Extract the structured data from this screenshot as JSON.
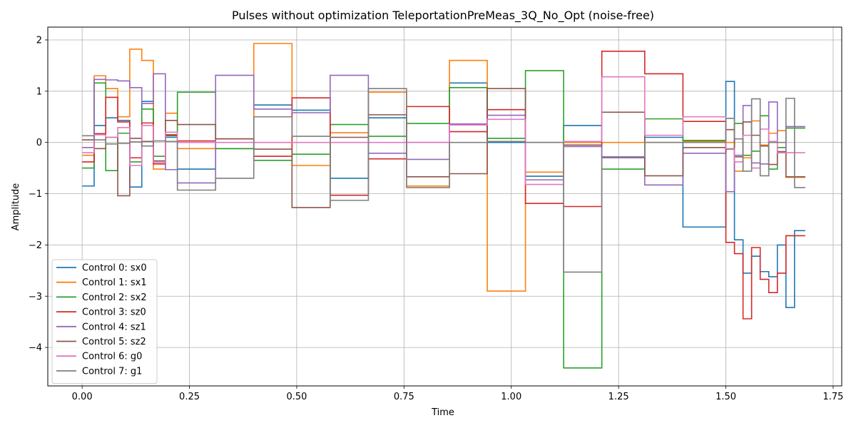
{
  "chart_data": {
    "type": "line",
    "step": "post",
    "title": "Pulses without optimization TeleportationPreMeas_3Q_No_Opt (noise-free)",
    "xlabel": "Time",
    "ylabel": "Amplitude",
    "xlim": [
      -0.08,
      1.77
    ],
    "ylim": [
      -4.75,
      2.25
    ],
    "xticks": [
      0.0,
      0.25,
      0.5,
      0.75,
      1.0,
      1.25,
      1.5,
      1.75
    ],
    "xtick_labels": [
      "0.00",
      "0.25",
      "0.50",
      "0.75",
      "1.00",
      "1.25",
      "1.50",
      "1.75"
    ],
    "yticks": [
      -4,
      -3,
      -2,
      -1,
      0,
      1,
      2
    ],
    "ytick_labels": [
      "−4",
      "−3",
      "−2",
      "−1",
      "0",
      "1",
      "2"
    ],
    "grid": true,
    "legend_position": "lower-left",
    "series": [
      {
        "name": "Control 0: sx0",
        "color": "#1f77b4",
        "x": [
          0.0,
          0.028,
          0.055,
          0.083,
          0.111,
          0.139,
          0.166,
          0.194,
          0.222,
          0.311,
          0.4,
          0.489,
          0.578,
          0.667,
          0.756,
          0.856,
          0.944,
          1.033,
          1.122,
          1.211,
          1.311,
          1.4,
          1.5,
          1.52,
          1.54,
          1.56,
          1.58,
          1.6,
          1.62,
          1.64,
          1.66,
          1.685
        ],
        "y": [
          -0.85,
          0.33,
          0.48,
          0.43,
          -0.87,
          0.8,
          -0.39,
          0.1,
          -0.52,
          -0.12,
          0.73,
          0.63,
          -0.7,
          0.48,
          0.0,
          1.16,
          0.0,
          -0.66,
          0.33,
          -0.29,
          0.1,
          -1.65,
          1.19,
          -1.9,
          -2.55,
          -2.22,
          -2.52,
          -2.62,
          -2.0,
          -3.22,
          -1.72,
          -1.72
        ]
      },
      {
        "name": "Control 1: sx1",
        "color": "#ff7f0e",
        "x": [
          0.0,
          0.028,
          0.055,
          0.083,
          0.111,
          0.139,
          0.166,
          0.194,
          0.222,
          0.311,
          0.4,
          0.489,
          0.578,
          0.667,
          0.756,
          0.856,
          0.944,
          1.033,
          1.122,
          1.211,
          1.311,
          1.4,
          1.5,
          1.52,
          1.54,
          1.56,
          1.58,
          1.6,
          1.62,
          1.64,
          1.66,
          1.685
        ],
        "y": [
          -0.25,
          1.3,
          1.05,
          0.5,
          1.82,
          1.6,
          -0.52,
          0.57,
          -0.12,
          -0.12,
          1.93,
          -0.45,
          0.19,
          0.98,
          -0.85,
          1.6,
          -2.9,
          -0.58,
          0.0,
          0.0,
          0.0,
          0.02,
          0.0,
          -0.56,
          -0.3,
          0.42,
          -0.05,
          0.18,
          0.23,
          -0.68,
          -0.68,
          -0.68
        ]
      },
      {
        "name": "Control 2: sx2",
        "color": "#2ca02c",
        "x": [
          0.0,
          0.028,
          0.055,
          0.083,
          0.111,
          0.139,
          0.166,
          0.194,
          0.222,
          0.311,
          0.4,
          0.489,
          0.578,
          0.667,
          0.756,
          0.856,
          0.944,
          1.033,
          1.122,
          1.211,
          1.311,
          1.4,
          1.5,
          1.52,
          1.54,
          1.56,
          1.58,
          1.6,
          1.62,
          1.64,
          1.66,
          1.685
        ],
        "y": [
          -0.5,
          1.16,
          -0.55,
          0.18,
          -0.38,
          0.65,
          -0.27,
          0.13,
          0.98,
          -0.12,
          -0.35,
          -0.23,
          0.35,
          0.12,
          0.37,
          1.07,
          0.08,
          1.4,
          -4.4,
          -0.52,
          0.46,
          0.04,
          -0.13,
          0.37,
          -0.25,
          -0.17,
          0.52,
          -0.52,
          -0.1,
          0.28,
          0.28,
          0.28
        ]
      },
      {
        "name": "Control 3: sz0",
        "color": "#d62728",
        "x": [
          0.0,
          0.028,
          0.055,
          0.083,
          0.111,
          0.139,
          0.166,
          0.194,
          0.222,
          0.311,
          0.4,
          0.489,
          0.578,
          0.667,
          0.756,
          0.856,
          0.944,
          1.033,
          1.122,
          1.211,
          1.311,
          1.4,
          1.5,
          1.52,
          1.54,
          1.56,
          1.58,
          1.6,
          1.62,
          1.64,
          1.66,
          1.685
        ],
        "y": [
          -0.38,
          0.17,
          0.88,
          0.4,
          -0.3,
          0.38,
          -0.42,
          0.15,
          0.03,
          0.07,
          -0.27,
          0.87,
          -1.03,
          -0.32,
          0.7,
          0.21,
          0.64,
          -1.19,
          -1.25,
          1.78,
          1.34,
          0.41,
          -1.95,
          -2.17,
          -3.44,
          -2.05,
          -2.67,
          -2.93,
          -2.55,
          -1.82,
          -1.82,
          -1.82
        ]
      },
      {
        "name": "Control 4: sz1",
        "color": "#9467bd",
        "x": [
          0.0,
          0.028,
          0.055,
          0.083,
          0.111,
          0.139,
          0.166,
          0.194,
          0.222,
          0.311,
          0.4,
          0.489,
          0.578,
          0.667,
          0.756,
          0.856,
          0.944,
          1.033,
          1.122,
          1.211,
          1.311,
          1.4,
          1.5,
          1.52,
          1.54,
          1.56,
          1.58,
          1.6,
          1.62,
          1.64,
          1.66,
          1.685
        ],
        "y": [
          -0.1,
          1.23,
          1.22,
          1.2,
          1.07,
          0.76,
          1.34,
          -0.53,
          -0.79,
          1.31,
          0.65,
          0.58,
          1.31,
          -0.21,
          -0.33,
          0.36,
          0.53,
          -0.73,
          -0.08,
          -0.3,
          -0.83,
          -0.21,
          -0.96,
          -0.25,
          0.72,
          -0.4,
          -0.42,
          0.79,
          -0.2,
          0.31,
          0.31,
          0.31
        ]
      },
      {
        "name": "Control 5: sz2",
        "color": "#8c564b",
        "x": [
          0.0,
          0.028,
          0.055,
          0.083,
          0.111,
          0.139,
          0.166,
          0.194,
          0.222,
          0.311,
          0.4,
          0.489,
          0.578,
          0.667,
          0.756,
          0.856,
          0.944,
          1.033,
          1.122,
          1.211,
          1.311,
          1.4,
          1.5,
          1.52,
          1.54,
          1.56,
          1.58,
          1.6,
          1.62,
          1.64,
          1.66,
          1.685
        ],
        "y": [
          0.05,
          -0.12,
          0.1,
          -1.04,
          0.08,
          0.02,
          -0.36,
          0.43,
          0.35,
          0.07,
          -0.13,
          -1.27,
          0.1,
          0.54,
          -0.67,
          -0.61,
          1.05,
          0.0,
          -0.05,
          0.59,
          -0.65,
          -0.1,
          0.25,
          -0.28,
          0.4,
          0.14,
          -0.07,
          -0.43,
          -0.18,
          -0.67,
          -0.67,
          -0.67
        ]
      },
      {
        "name": "Control 6: g0",
        "color": "#e377c2",
        "x": [
          0.0,
          0.028,
          0.055,
          0.083,
          0.111,
          0.139,
          0.166,
          0.194,
          0.222,
          0.311,
          0.4,
          0.489,
          0.578,
          0.667,
          0.756,
          0.856,
          0.944,
          1.033,
          1.122,
          1.211,
          1.311,
          1.4,
          1.5,
          1.52,
          1.54,
          1.56,
          1.58,
          1.6,
          1.62,
          1.64,
          1.66,
          1.685
        ],
        "y": [
          -0.2,
          0.15,
          0.1,
          0.29,
          -0.45,
          0.33,
          -0.39,
          0.2,
          0.0,
          0.0,
          0.0,
          0.0,
          0.0,
          0.0,
          0.0,
          0.34,
          0.45,
          -0.82,
          0.02,
          1.28,
          0.14,
          0.5,
          -0.12,
          -0.38,
          0.14,
          -0.5,
          0.26,
          0.02,
          -0.2,
          -0.2,
          -0.2,
          -0.2
        ]
      },
      {
        "name": "Control 7: g1",
        "color": "#7f7f7f",
        "x": [
          0.0,
          0.028,
          0.055,
          0.083,
          0.111,
          0.139,
          0.166,
          0.194,
          0.222,
          0.311,
          0.4,
          0.489,
          0.578,
          0.667,
          0.756,
          0.856,
          0.944,
          1.033,
          1.122,
          1.211,
          1.311,
          1.4,
          1.5,
          1.52,
          1.54,
          1.56,
          1.58,
          1.6,
          1.62,
          1.64,
          1.66,
          1.685
        ],
        "y": [
          0.13,
          0.05,
          -0.03,
          -0.02,
          0.01,
          -0.07,
          0.03,
          0.02,
          -0.93,
          -0.7,
          0.5,
          0.12,
          -1.13,
          1.05,
          -0.88,
          0.0,
          0.02,
          0.0,
          -2.53,
          -0.28,
          0.0,
          0.0,
          0.47,
          0.07,
          -0.56,
          0.85,
          -0.65,
          0.0,
          0.0,
          0.86,
          -0.88,
          -0.88
        ]
      }
    ]
  }
}
